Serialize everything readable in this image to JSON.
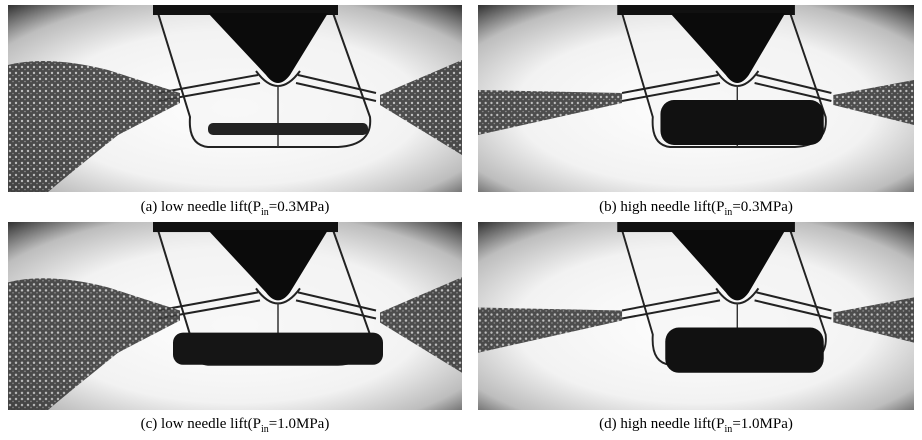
{
  "figure": {
    "panels": [
      {
        "caption": {
          "text": "(a) low needle lift(P",
          "subscript": "in",
          "tail": "=0.3MPa)"
        }
      },
      {
        "caption": {
          "text": "(b) high needle lift(P",
          "subscript": "in",
          "tail": "=0.3MPa)"
        }
      },
      {
        "caption": {
          "text": "(c) low needle lift(P",
          "subscript": "in",
          "tail": "=1.0MPa)"
        }
      },
      {
        "caption": {
          "text": "(d) high needle lift(P",
          "subscript": "in",
          "tail": "=1.0MPa)"
        }
      }
    ]
  }
}
